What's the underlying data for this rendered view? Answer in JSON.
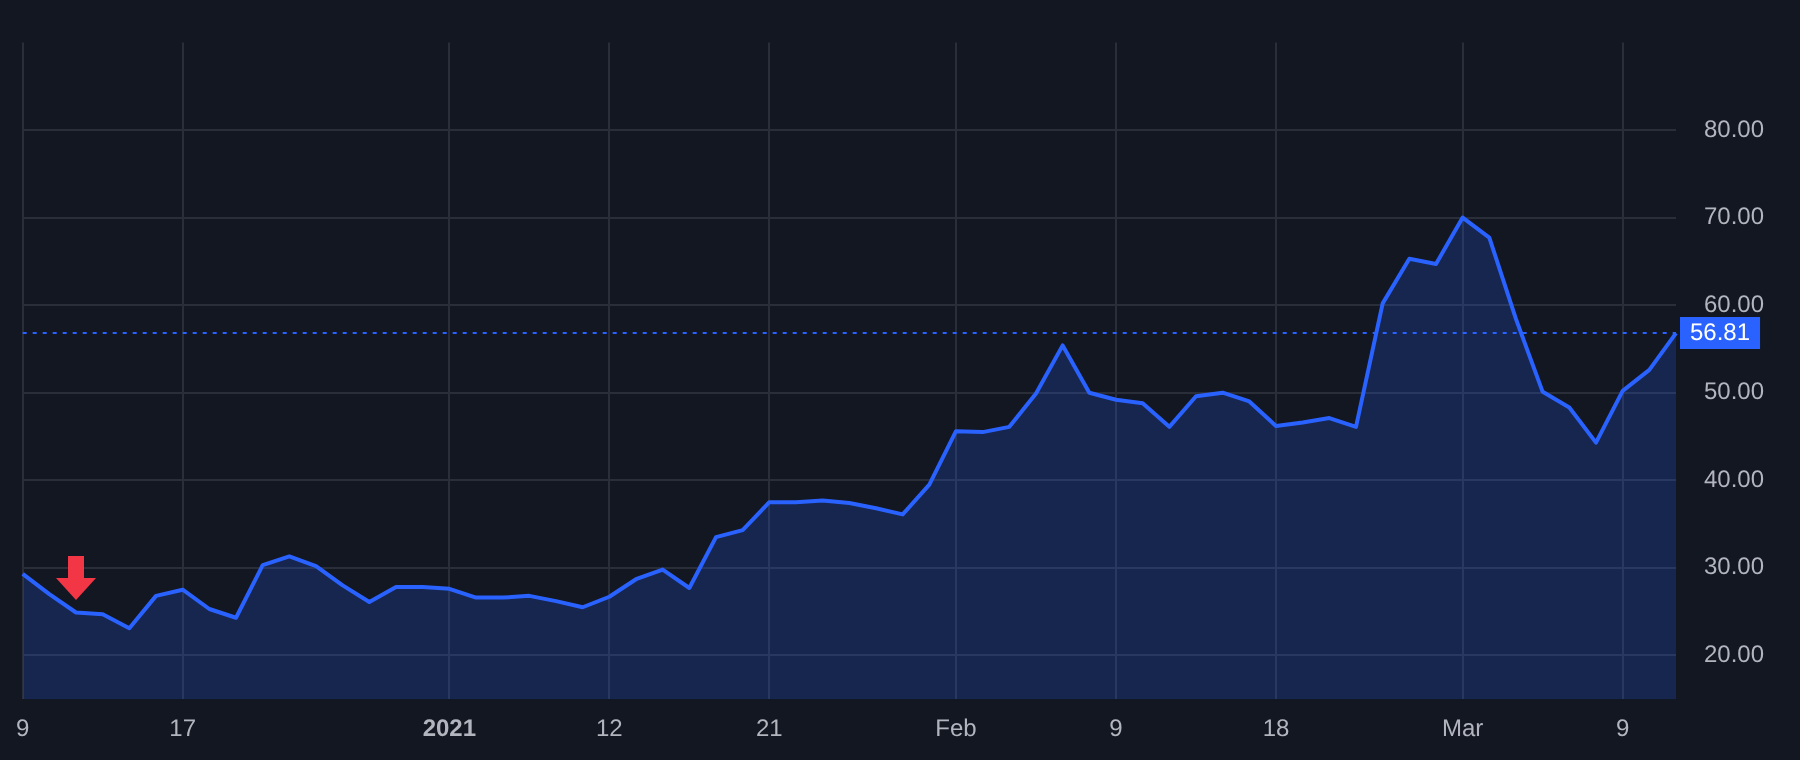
{
  "chart_data": {
    "type": "area",
    "categories": [
      "9",
      null,
      null,
      null,
      null,
      null,
      "17",
      null,
      null,
      null,
      null,
      null,
      null,
      null,
      null,
      null,
      "2021",
      null,
      null,
      null,
      null,
      null,
      "12",
      null,
      null,
      null,
      null,
      null,
      "21",
      null,
      null,
      null,
      null,
      null,
      null,
      "Feb",
      null,
      null,
      null,
      null,
      null,
      "9",
      null,
      null,
      null,
      null,
      null,
      "18",
      null,
      null,
      null,
      null,
      null,
      null,
      "Mar",
      null,
      null,
      null,
      null,
      null,
      "9",
      null,
      null
    ],
    "series": [
      {
        "color": "#2962ff",
        "values": [
          29.3,
          27.0,
          24.9,
          24.7,
          23.1,
          26.8,
          27.5,
          25.3,
          24.3,
          30.3,
          31.3,
          30.2,
          28.0,
          26.1,
          27.8,
          27.8,
          27.6,
          26.6,
          26.6,
          26.8,
          26.2,
          25.5,
          26.7,
          28.7,
          29.8,
          27.7,
          33.5,
          34.3,
          37.5,
          37.5,
          37.7,
          37.4,
          36.8,
          36.1,
          39.5,
          45.6,
          45.5,
          46.1,
          49.9,
          55.4,
          50.0,
          49.2,
          48.8,
          46.1,
          49.6,
          50.0,
          49.0,
          46.2,
          46.6,
          47.1,
          46.1,
          60.2,
          65.3,
          64.7,
          70.0,
          67.7,
          58.4,
          50.1,
          48.3,
          44.3,
          50.2,
          52.6,
          56.81
        ]
      }
    ],
    "ylim": [
      15,
      90
    ],
    "yticks": [
      {
        "value": 20,
        "label": "20.00"
      },
      {
        "value": 30,
        "label": "30.00"
      },
      {
        "value": 40,
        "label": "40.00"
      },
      {
        "value": 50,
        "label": "50.00"
      },
      {
        "value": 60,
        "label": "60.00"
      },
      {
        "value": 70,
        "label": "70.00"
      },
      {
        "value": 80,
        "label": "80.00"
      }
    ],
    "ref_lines": [
      {
        "axis": "y",
        "value": 56.81,
        "label": "56.81",
        "color": "#2962ff",
        "line_style": "dotted"
      }
    ],
    "grid": true,
    "legend": false,
    "marker": "none",
    "line_style": "solid"
  }
}
